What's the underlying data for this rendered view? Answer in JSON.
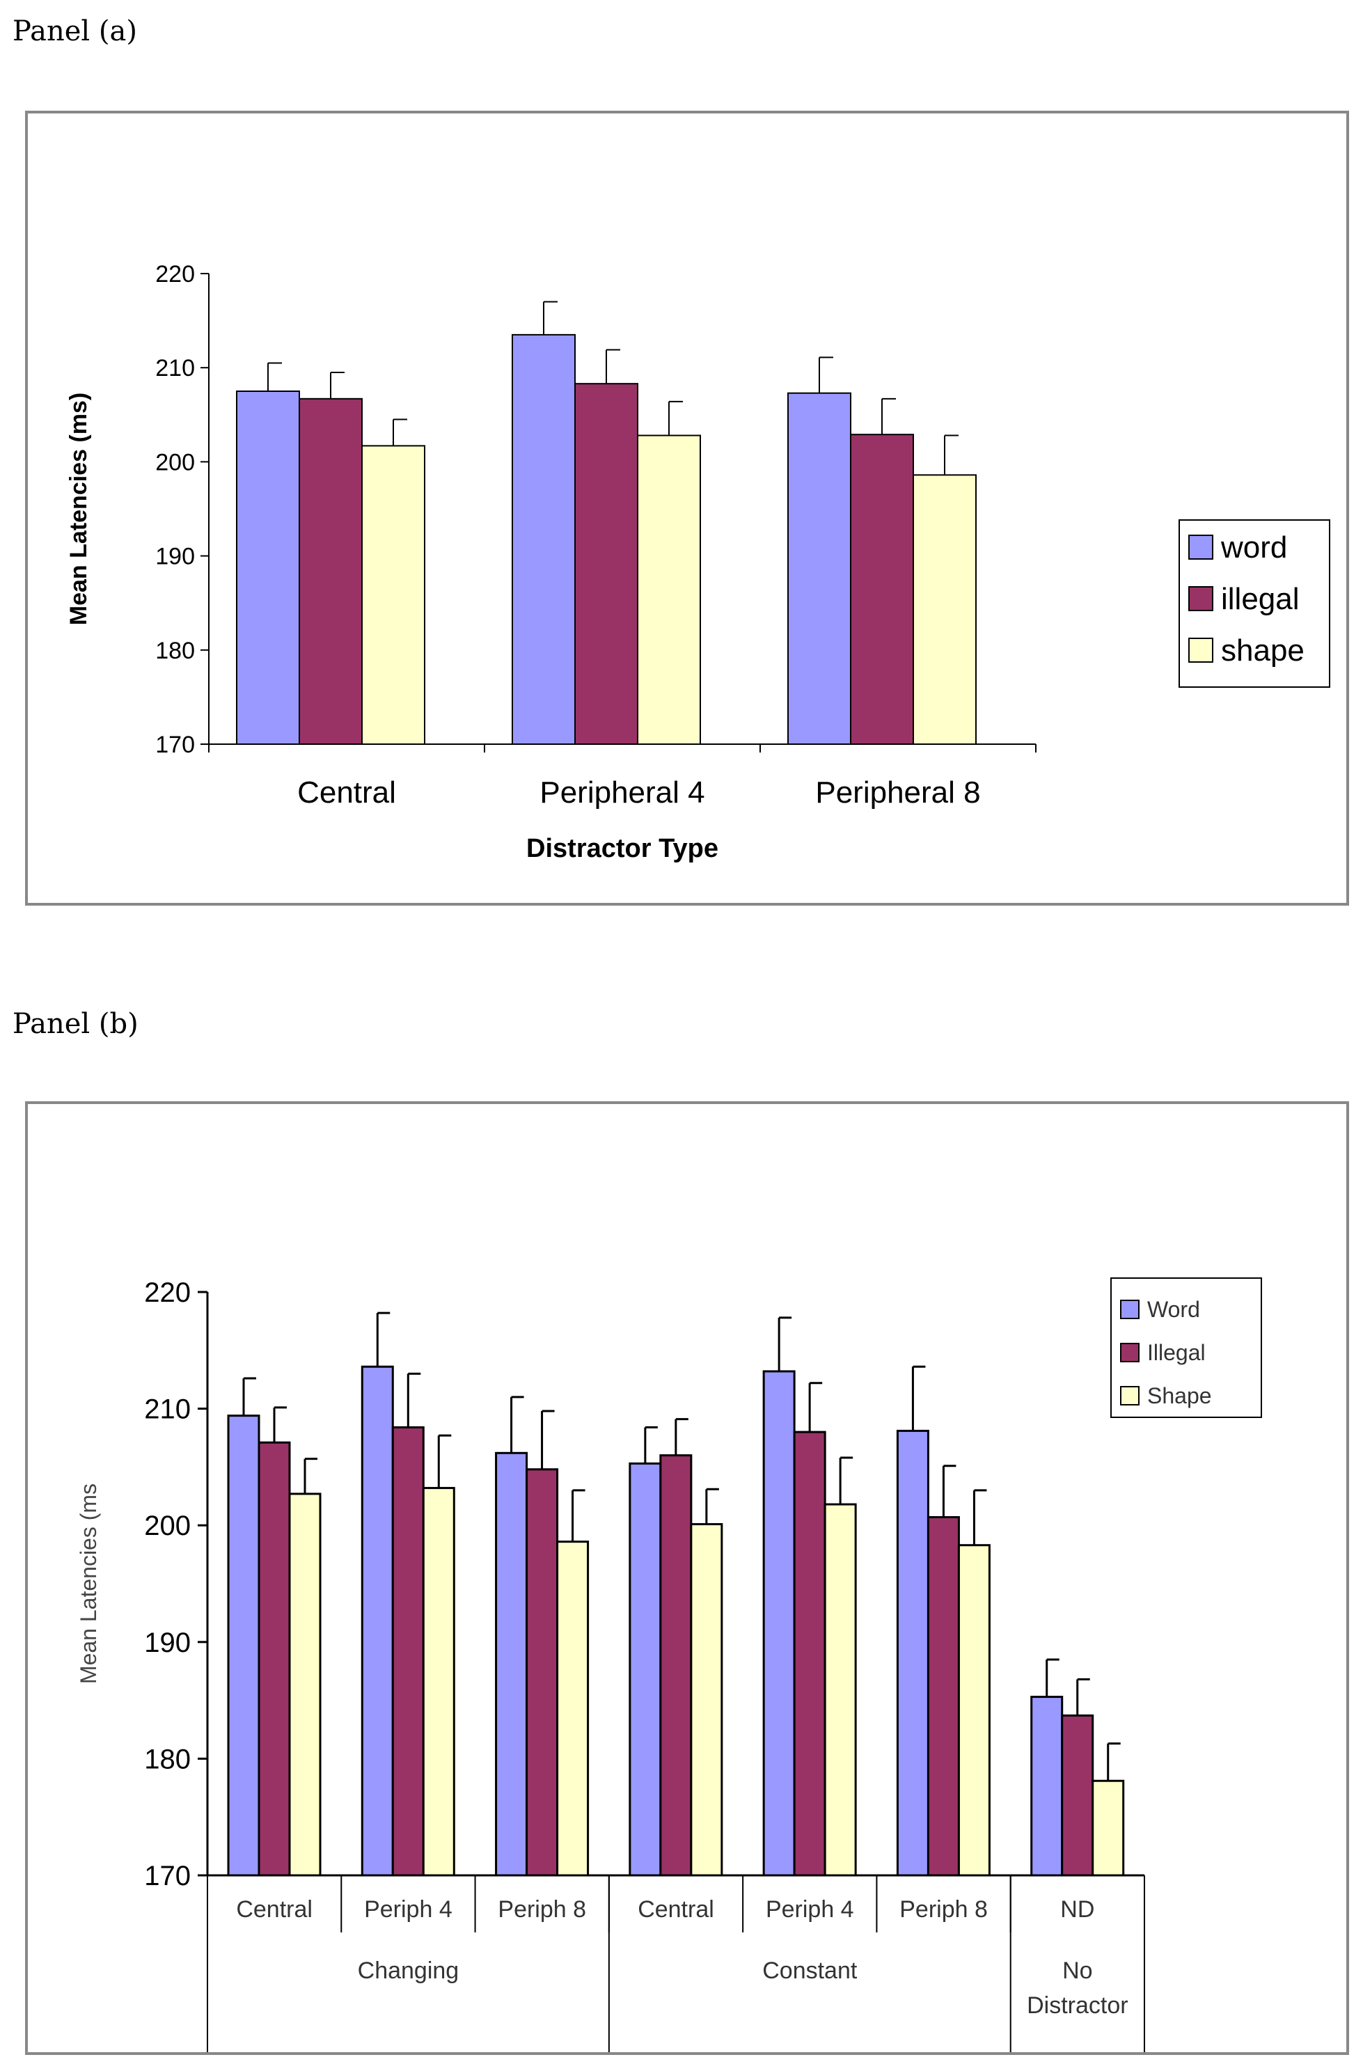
{
  "panel_a_label": "Panel (a)",
  "panel_b_label": "Panel (b)",
  "colors": {
    "word": "#9999ff",
    "illegal": "#993366",
    "shape": "#ffffcc",
    "outline": "#000000",
    "frame": "#888888"
  },
  "chart_data": [
    {
      "type": "bar",
      "xlabel": "Distractor Type",
      "ylabel": "Mean Latencies (ms)",
      "ylim": [
        170,
        220
      ],
      "yticks": [
        "170",
        "180",
        "190",
        "200",
        "210",
        "220"
      ],
      "categories": [
        "Central",
        "Peripheral 4",
        "Peripheral 8"
      ],
      "series": [
        {
          "name": "word",
          "values": [
            207.5,
            213.5,
            207.3
          ],
          "errors": [
            3.0,
            3.5,
            3.8
          ]
        },
        {
          "name": "illegal",
          "values": [
            206.7,
            208.3,
            202.9
          ],
          "errors": [
            2.8,
            3.6,
            3.8
          ]
        },
        {
          "name": "shape",
          "values": [
            201.7,
            202.8,
            198.6
          ],
          "errors": [
            2.8,
            3.6,
            4.2
          ]
        }
      ],
      "legend_position": "right",
      "grid": false
    },
    {
      "type": "bar",
      "xlabel": "",
      "ylabel": "Mean Latencies (ms",
      "ylim": [
        170,
        220
      ],
      "yticks": [
        "170",
        "180",
        "190",
        "200",
        "210",
        "220"
      ],
      "categories": [
        "Central",
        "Periph 4",
        "Periph 8",
        "Central",
        "Periph 4",
        "Periph 8",
        "ND"
      ],
      "groups": [
        {
          "label": "Changing",
          "span": 3
        },
        {
          "label": "Constant",
          "span": 3
        },
        {
          "label": "No\nDistractor",
          "span": 1
        }
      ],
      "series": [
        {
          "name": "Word",
          "values": [
            209.4,
            213.6,
            206.2,
            205.3,
            213.2,
            208.1,
            185.3
          ],
          "errors": [
            3.2,
            4.6,
            4.8,
            3.1,
            4.6,
            5.5,
            3.2
          ]
        },
        {
          "name": "Illegal",
          "values": [
            207.1,
            208.4,
            204.8,
            206.0,
            208.0,
            200.7,
            183.7
          ],
          "errors": [
            3.0,
            4.6,
            5.0,
            3.1,
            4.2,
            4.4,
            3.1
          ]
        },
        {
          "name": "Shape",
          "values": [
            202.7,
            203.2,
            198.6,
            200.1,
            201.8,
            198.3,
            178.1
          ],
          "errors": [
            3.0,
            4.5,
            4.4,
            3.0,
            4.0,
            4.7,
            3.2
          ]
        }
      ],
      "legend_position": "top-right",
      "grid": false
    }
  ]
}
